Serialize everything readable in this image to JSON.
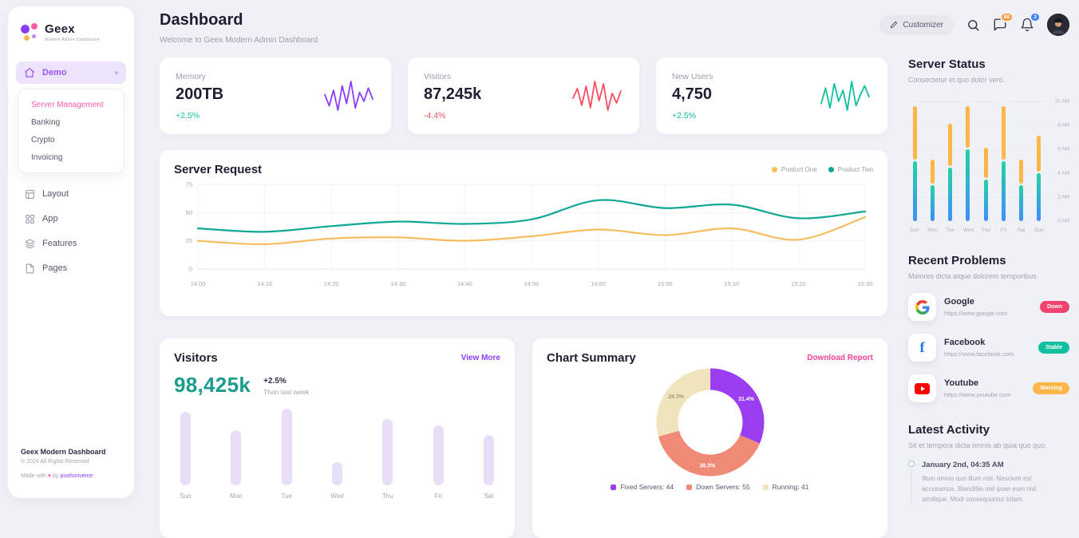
{
  "app": {
    "name": "Geex",
    "tagline": "Modern Admin Dashboard"
  },
  "header": {
    "title": "Dashboard",
    "subtitle": "Welcome to Geex Modern Admin Dashboard",
    "customizer": "Customizer",
    "chat_badge": "88",
    "bell_badge": "3"
  },
  "sidebar": {
    "demo": {
      "label": "Demo"
    },
    "submenu": [
      {
        "label": "Server Management",
        "active": true
      },
      {
        "label": "Banking",
        "active": false
      },
      {
        "label": "Crypto",
        "active": false
      },
      {
        "label": "Invoicing",
        "active": false
      }
    ],
    "items": [
      {
        "label": "Layout",
        "icon": "layout"
      },
      {
        "label": "App",
        "icon": "app"
      },
      {
        "label": "Features",
        "icon": "features"
      },
      {
        "label": "Pages",
        "icon": "pages"
      }
    ],
    "footer": {
      "title": "Geex Modern Dashboard",
      "copyright": "© 2024 All Rights Reserved",
      "credit_prefix": "Made with",
      "credit_heart": "♥",
      "credit_mid": "by",
      "credit_brand": "pixeluniverce"
    }
  },
  "stat_cards": [
    {
      "label": "Memory",
      "value": "200TB",
      "delta": "+2.5%",
      "direction": "up",
      "spark_color": "#8b3dff",
      "spark": [
        18,
        8,
        22,
        4,
        26,
        10,
        30,
        6,
        20,
        12,
        24,
        14
      ]
    },
    {
      "label": "Visitors",
      "value": "87,245k",
      "delta": "-4.4%",
      "direction": "down",
      "spark_color": "#ff4d61",
      "spark": [
        14,
        22,
        8,
        24,
        6,
        28,
        12,
        26,
        4,
        18,
        10,
        20
      ]
    },
    {
      "label": "New Users",
      "value": "4,750",
      "delta": "+2.5%",
      "direction": "up",
      "spark_color": "#0fbf9f",
      "spark": [
        10,
        24,
        6,
        28,
        12,
        22,
        4,
        30,
        8,
        18,
        26,
        16
      ]
    }
  ],
  "server_request": {
    "title": "Server Request"
  },
  "visitors": {
    "title": "Visitors",
    "value": "98,425k",
    "delta": "+2.5%",
    "delta_caption": "Than last week",
    "link": "View More"
  },
  "chart_summary": {
    "title": "Chart Summary",
    "link": "Download Report"
  },
  "server_status": {
    "title": "Server Status",
    "subtitle": "Consectetur et quo dolor vero."
  },
  "recent_problems": {
    "title": "Recent Problems",
    "subtitle": "Maiores dicta atque dolorem temporibus",
    "items": [
      {
        "name": "Google",
        "url": "https://www.google.com",
        "icon": "google",
        "status": "Down",
        "status_color": "#f2426e"
      },
      {
        "name": "Facebook",
        "url": "https://www.facebook.com",
        "icon": "facebook",
        "status": "Stable",
        "status_color": "#0fbf9f"
      },
      {
        "name": "Youtube",
        "url": "https://www.youtube.com",
        "icon": "youtube",
        "status": "Warning",
        "status_color": "#ffb648"
      }
    ]
  },
  "latest_activity": {
    "title": "Latest Activity",
    "subtitle": "Sit et tempora dicta omnis ab quia quo quo.",
    "entries": [
      {
        "time": "January 2nd, 04:35 AM",
        "text": "Illum omnis quo illum nisl. Nesciunt est accusamus. Blanditiis nisl quae eum nisl similique. Modi consequuntur totam."
      }
    ]
  },
  "chart_data": [
    {
      "id": "server-request",
      "type": "line",
      "title": "Server Request",
      "x": [
        "14:00",
        "14:10",
        "14:20",
        "14:30",
        "14:40",
        "14:50",
        "14:60",
        "15:00",
        "15:10",
        "15:20",
        "15:30"
      ],
      "y_ticks": [
        0,
        25,
        50,
        75
      ],
      "ylim": [
        0,
        75
      ],
      "grid": true,
      "legend_position": "top-right",
      "series": [
        {
          "name": "Product One",
          "color": "#f6bc5e",
          "values": [
            25,
            22,
            27,
            28,
            25,
            29,
            35,
            30,
            36,
            26,
            46
          ]
        },
        {
          "name": "Product Two",
          "color": "#10a794",
          "values": [
            36,
            33,
            38,
            42,
            40,
            44,
            61,
            54,
            57,
            45,
            51
          ]
        }
      ]
    },
    {
      "id": "visitors",
      "type": "bar",
      "title": "Visitors",
      "categories": [
        "Sun",
        "Mon",
        "Tue",
        "Wed",
        "Thu",
        "Fri",
        "Sat"
      ],
      "values": [
        96,
        72,
        100,
        30,
        86,
        78,
        66
      ],
      "bar_color": "#e9def8"
    },
    {
      "id": "chart-summary",
      "type": "pie",
      "title": "Chart Summary",
      "segments": [
        {
          "label": "Fixed Servers",
          "value": 44,
          "pct": "31.4%",
          "color": "#9b3df0",
          "pct_color": "#ffffff"
        },
        {
          "label": "Down Servers",
          "value": 55,
          "pct": "39.3%",
          "color": "#ef8a76",
          "pct_color": "#ffffff"
        },
        {
          "label": "Running",
          "value": 41,
          "pct": "29.3%",
          "color": "#efe4bd",
          "pct_color": "#a59c74"
        }
      ]
    },
    {
      "id": "server-status",
      "type": "bar",
      "stacked": true,
      "title": "Server Status",
      "categories": [
        "Sun",
        "Mon",
        "Tue",
        "Wed",
        "Thu",
        "Fri",
        "Sat",
        "Sun"
      ],
      "ylim": [
        0,
        10
      ],
      "y_labels_top_to_bottom": [
        "10 AM",
        "8 AM",
        "6 AM",
        "4 AM",
        "2 AM",
        "0 AM"
      ],
      "series": [
        {
          "name": "primary",
          "color_top": "#22d3a5",
          "color_bottom": "#3f8efc",
          "values": [
            5,
            3,
            4.5,
            6,
            3.5,
            5,
            3,
            4
          ]
        },
        {
          "name": "secondary",
          "color": "#ffb648",
          "values": [
            4.5,
            2,
            3.5,
            3.5,
            2.5,
            4.5,
            2,
            3
          ]
        }
      ]
    }
  ]
}
